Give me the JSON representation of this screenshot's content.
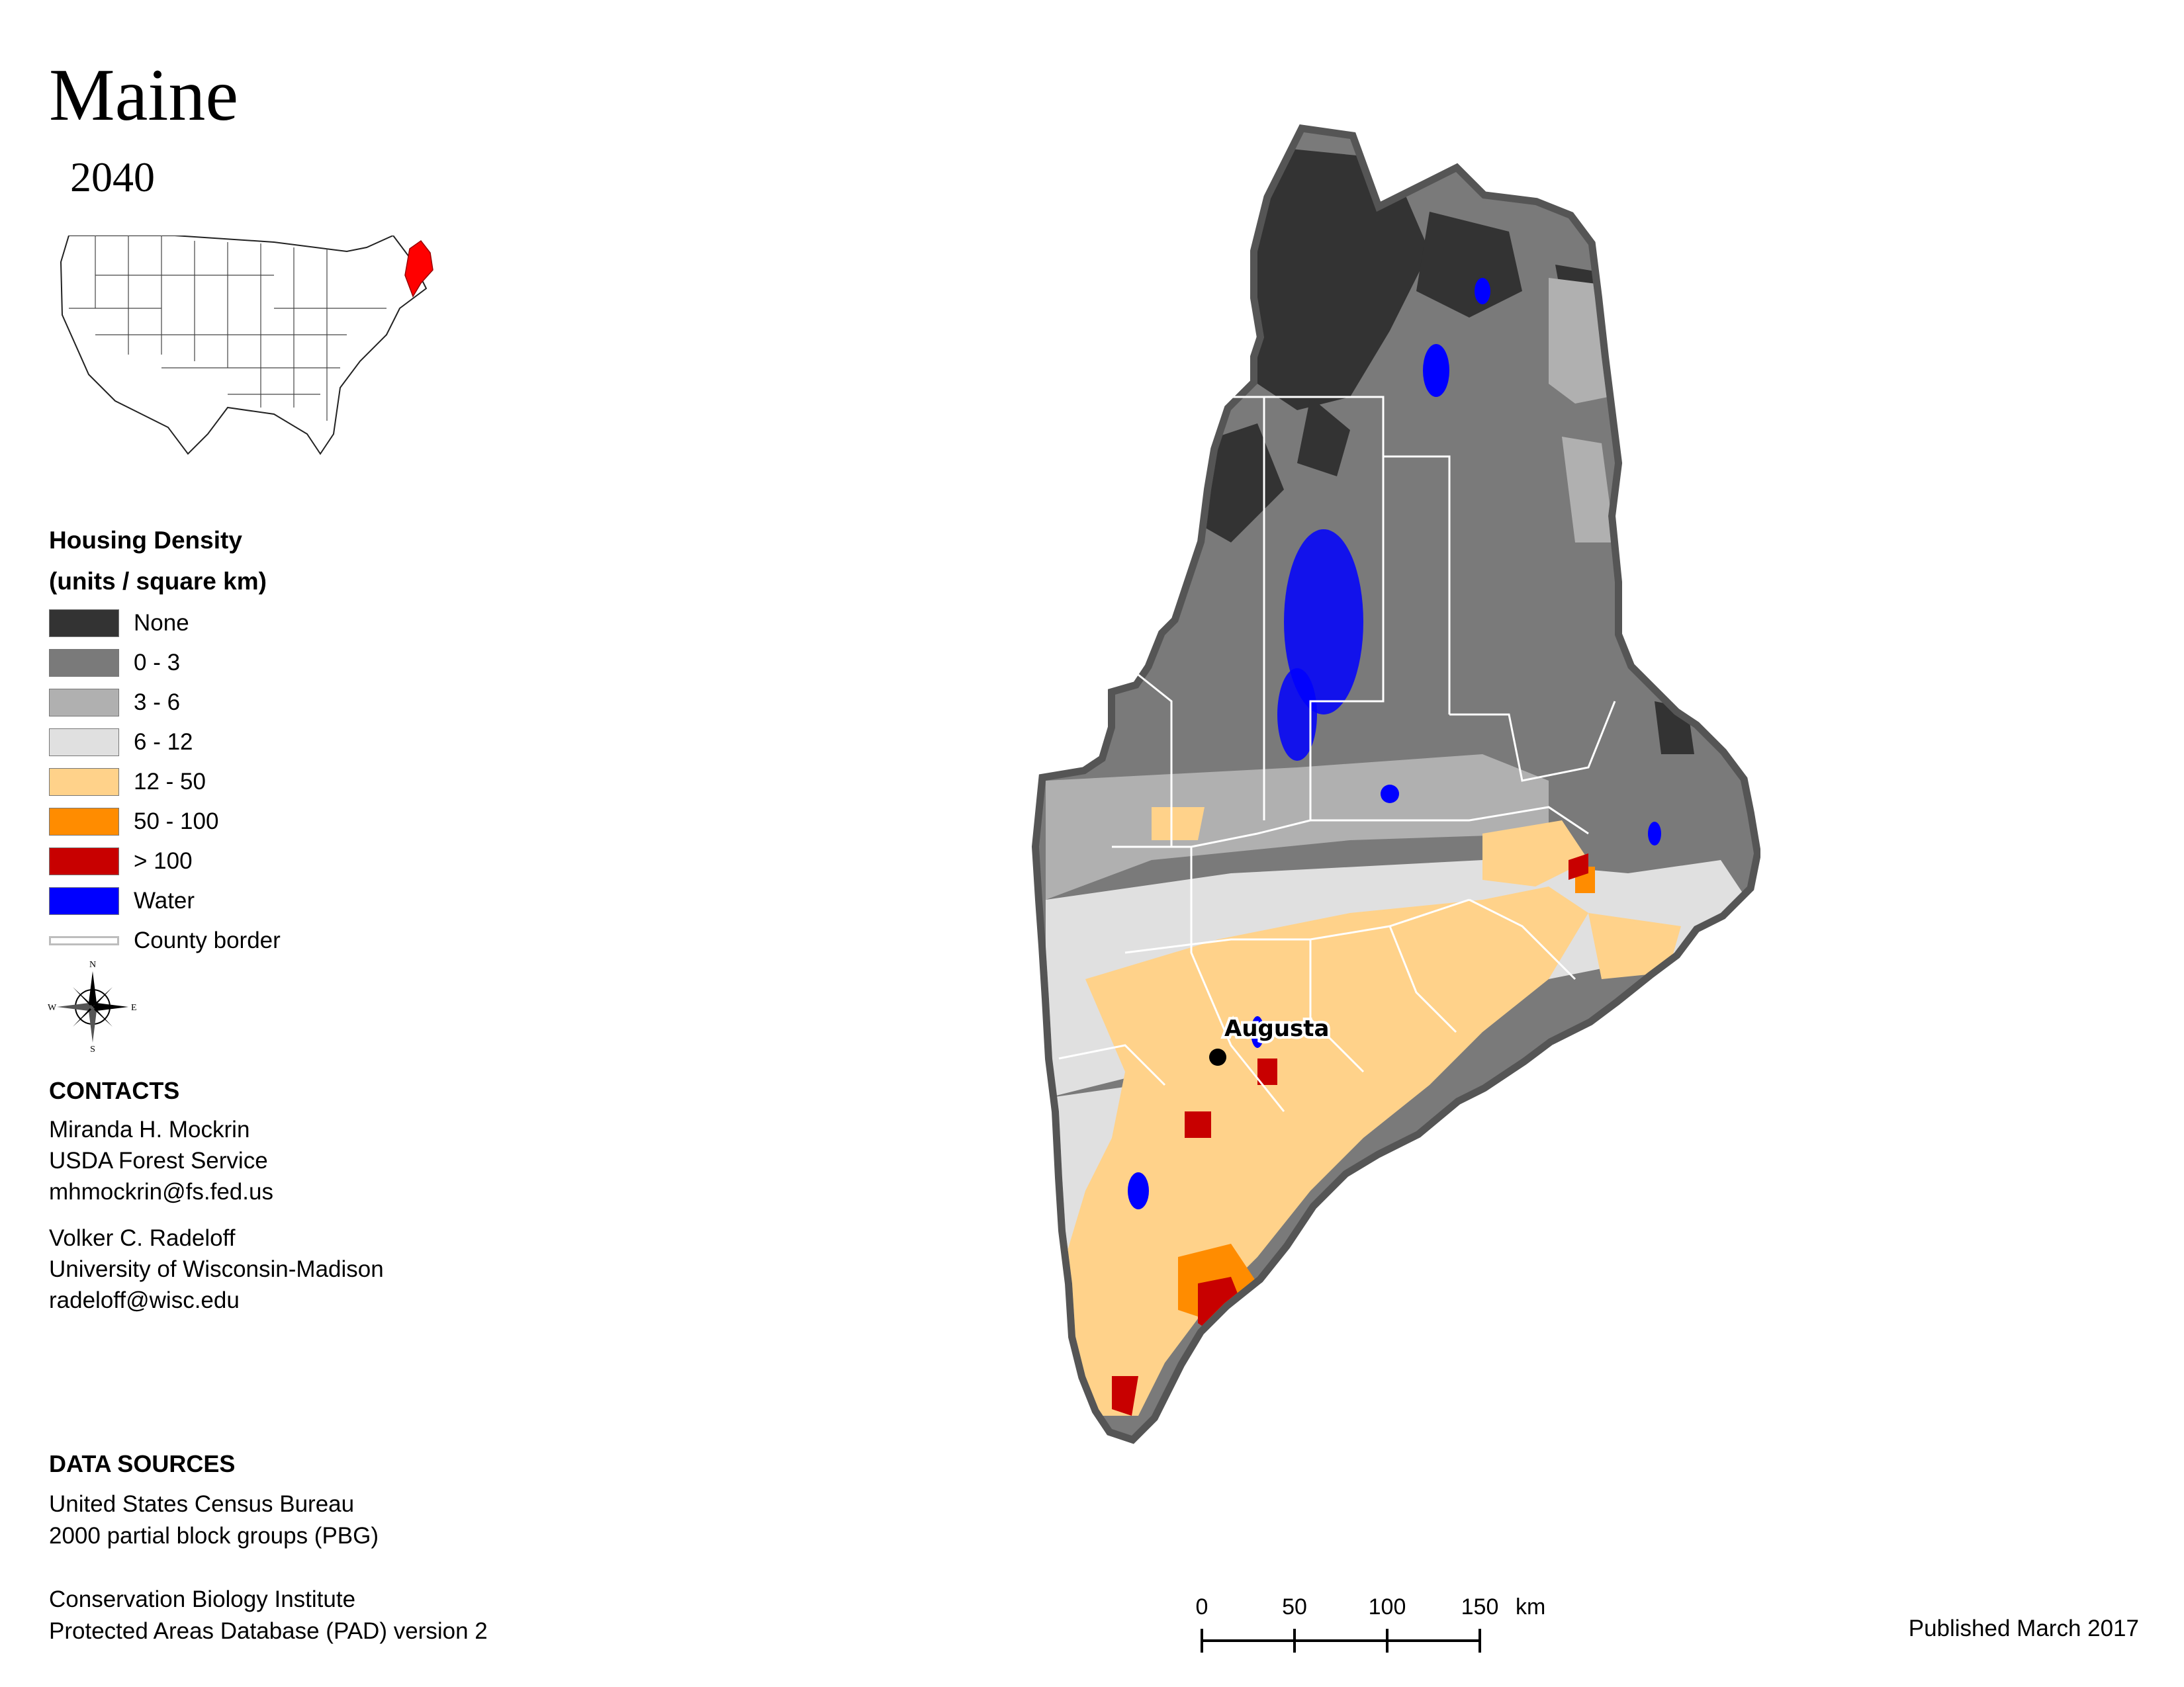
{
  "title": "Maine",
  "year": "2040",
  "legend": {
    "title_line1": "Housing Density",
    "title_line2": "(units / square km)",
    "items": [
      {
        "label": "None",
        "color": "#333333"
      },
      {
        "label": "0 - 3",
        "color": "#7a7a7a"
      },
      {
        "label": "3 - 6",
        "color": "#b0b0b0"
      },
      {
        "label": "6 - 12",
        "color": "#e0e0e0"
      },
      {
        "label": "12 - 50",
        "color": "#ffd28a"
      },
      {
        "label": "50 - 100",
        "color": "#ff8c00"
      },
      {
        "label": "> 100",
        "color": "#c80000"
      },
      {
        "label": "Water",
        "color": "#0000ff"
      }
    ],
    "border_label": "County border"
  },
  "compass": {
    "n": "N",
    "s": "S",
    "e": "E",
    "w": "W"
  },
  "contacts": {
    "heading": "CONTACTS",
    "people": [
      {
        "name": "Miranda H. Mockrin",
        "org": "USDA Forest Service",
        "email": "mhmockrin@fs.fed.us"
      },
      {
        "name": "Volker C. Radeloff",
        "org": "University of Wisconsin-Madison",
        "email": "radeloff@wisc.edu"
      }
    ]
  },
  "data_sources": {
    "heading": "DATA SOURCES",
    "line1": "United States Census Bureau",
    "line2": "2000 partial block groups (PBG)",
    "line3": "Conservation Biology Institute",
    "line4": "Protected Areas Database (PAD) version 2"
  },
  "city": {
    "name": "Augusta"
  },
  "scale_bar": {
    "ticks": [
      "0",
      "50",
      "100",
      "150"
    ],
    "unit": "km"
  },
  "published": "Published March 2017"
}
